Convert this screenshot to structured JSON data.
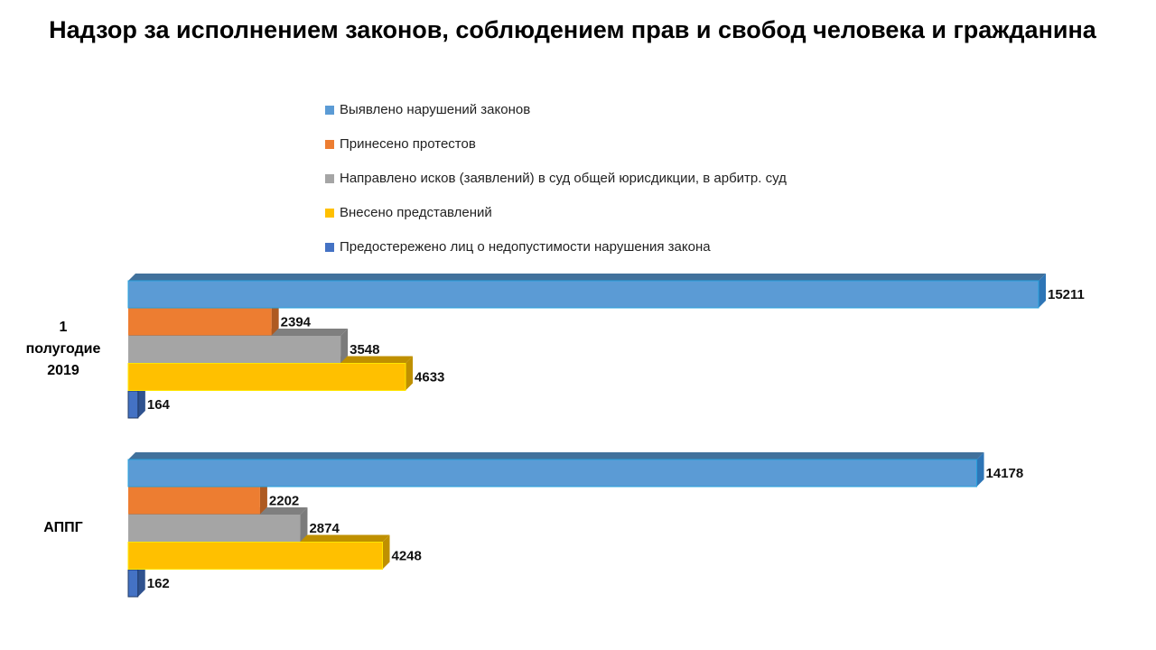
{
  "chart_data": {
    "type": "bar",
    "orientation": "horizontal",
    "style": "3d-clustered",
    "title": "Надзор за исполнением законов, соблюдением прав и свобод человека и гражданина",
    "categories": [
      {
        "label": "1 полугодие 2019",
        "lines": [
          "1",
          "полугодие",
          "2019"
        ]
      },
      {
        "label": "АППГ",
        "lines": [
          "АППГ"
        ]
      }
    ],
    "series": [
      {
        "name": "Выявлено нарушений законов",
        "color": "#5B9BD5",
        "top": "#41719C",
        "side": "#2E75B6",
        "values": [
          15211,
          14178
        ]
      },
      {
        "name": "Принесено протестов",
        "color": "#ED7D31",
        "top": "#AE5A21",
        "side": "#AE5A21",
        "values": [
          2394,
          2202
        ]
      },
      {
        "name": "Направлено исков (заявлений) в суд общей юрисдикции, в арбитр. суд",
        "color": "#A5A5A5",
        "top": "#7F7F7F",
        "side": "#7B7B7B",
        "values": [
          3548,
          2874
        ]
      },
      {
        "name": "Внесено представлений",
        "color": "#FFC000",
        "top": "#BF9000",
        "side": "#BF9000",
        "values": [
          4633,
          4248
        ]
      },
      {
        "name": "Предостережено лиц о недопустимости нарушения  закона",
        "color": "#4472C4",
        "top": "#2F528F",
        "side": "#2F528F",
        "values": [
          164,
          162
        ]
      }
    ],
    "xlim": [
      0,
      15211
    ],
    "grid": false,
    "legend_position": "top",
    "data_labels": true
  }
}
